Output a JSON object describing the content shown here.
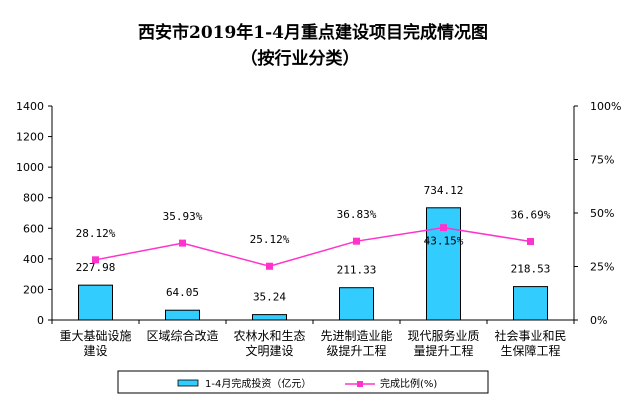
{
  "chart_data": {
    "type": "bar",
    "title": "西安市2019年1-4月重点建设项目完成情况图",
    "subtitle": "（按行业分类）",
    "categories": [
      [
        "重大基础设施",
        "建设"
      ],
      [
        "区域综合改造"
      ],
      [
        "农林水和生态",
        "文明建设"
      ],
      [
        "先进制造业能",
        "级提升工程"
      ],
      [
        "现代服务业质",
        "量提升工程"
      ],
      [
        "社会事业和民",
        "生保障工程"
      ]
    ],
    "series": [
      {
        "name": "1-4月完成投资（亿元）",
        "type": "bar",
        "axis": "left",
        "values": [
          227.98,
          64.05,
          35.24,
          211.33,
          734.12,
          218.53
        ],
        "labels": [
          "227.98",
          "64.05",
          "35.24",
          "211.33",
          "734.12",
          "218.53"
        ],
        "color": "#33CCFF"
      },
      {
        "name": "完成比例(%)",
        "type": "line",
        "axis": "right",
        "values": [
          28.12,
          35.93,
          25.12,
          36.83,
          43.15,
          36.69
        ],
        "labels": [
          "28.12%",
          "35.93%",
          "25.12%",
          "36.83%",
          "43.15%",
          "36.69%"
        ],
        "color": "#FF33CC"
      }
    ],
    "y_left": {
      "ylim": [
        0,
        1400
      ],
      "ticks": [
        "0",
        "200",
        "400",
        "600",
        "800",
        "1000",
        "1200",
        "1400"
      ]
    },
    "y_right": {
      "ylim": [
        0,
        100
      ],
      "ticks": [
        "0%",
        "25%",
        "50%",
        "75%",
        "100%"
      ]
    },
    "grid": false,
    "legend": "bottom"
  }
}
